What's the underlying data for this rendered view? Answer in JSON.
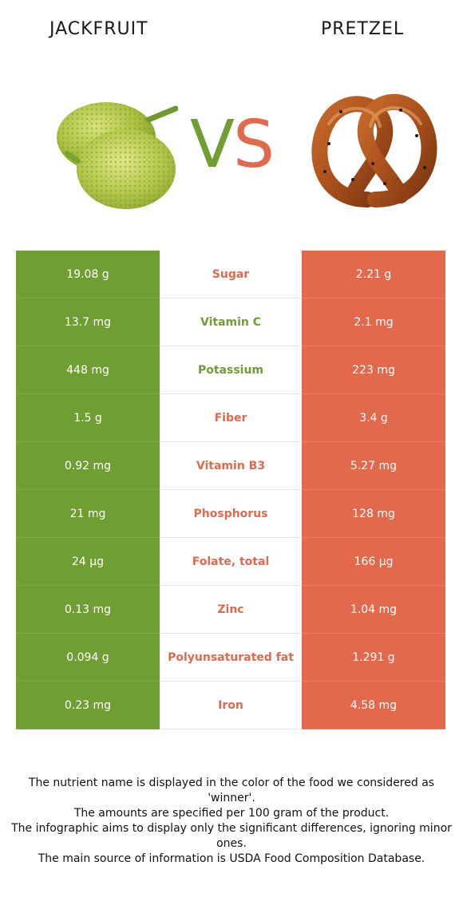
{
  "header": {
    "left_title": "JACKFRUIT",
    "right_title": "PRETZEL",
    "vs_v": "V",
    "vs_s": "S",
    "left_image_icon": "jackfruit-image",
    "right_image_icon": "pretzel-image"
  },
  "colors": {
    "left": "#6f9e32",
    "right": "#e2694b"
  },
  "rows": [
    {
      "left": "19.08 g",
      "nutrient": "Sugar",
      "right": "2.21 g",
      "winner": "right"
    },
    {
      "left": "13.7 mg",
      "nutrient": "Vitamin C",
      "right": "2.1 mg",
      "winner": "left"
    },
    {
      "left": "448 mg",
      "nutrient": "Potassium",
      "right": "223 mg",
      "winner": "left"
    },
    {
      "left": "1.5 g",
      "nutrient": "Fiber",
      "right": "3.4 g",
      "winner": "right"
    },
    {
      "left": "0.92 mg",
      "nutrient": "Vitamin B3",
      "right": "5.27 mg",
      "winner": "right"
    },
    {
      "left": "21 mg",
      "nutrient": "Phosphorus",
      "right": "128 mg",
      "winner": "right"
    },
    {
      "left": "24 µg",
      "nutrient": "Folate, total",
      "right": "166 µg",
      "winner": "right"
    },
    {
      "left": "0.13 mg",
      "nutrient": "Zinc",
      "right": "1.04 mg",
      "winner": "right"
    },
    {
      "left": "0.094 g",
      "nutrient": "Polyunsaturated fat",
      "right": "1.291 g",
      "winner": "right"
    },
    {
      "left": "0.23 mg",
      "nutrient": "Iron",
      "right": "4.58 mg",
      "winner": "right"
    }
  ],
  "footer": {
    "line1": "The nutrient name is displayed in the color of the food we considered as 'winner'.",
    "line2": "The amounts are specified per 100 gram of the product.",
    "line3": "The infographic aims to display only the significant differences, ignoring minor ones.",
    "line4": "The main source of information is USDA Food Composition Database."
  }
}
